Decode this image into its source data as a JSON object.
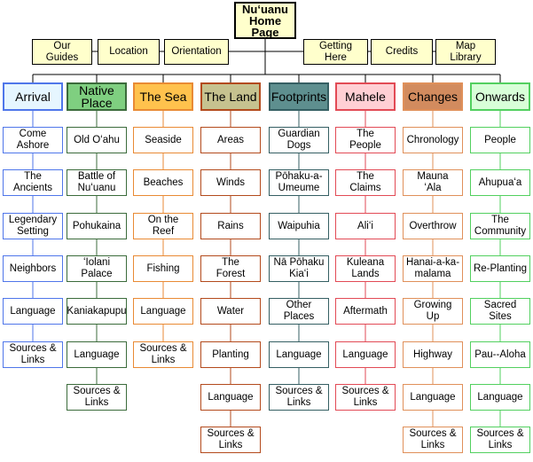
{
  "home": {
    "label": "Nuʻuanu\nHome\nPage"
  },
  "top_nav": [
    {
      "label": "Our\nGuides"
    },
    {
      "label": "Location"
    },
    {
      "label": "Orientation"
    },
    {
      "label": "Getting\nHere"
    },
    {
      "label": "Credits"
    },
    {
      "label": "Map\nLibrary"
    }
  ],
  "sections": [
    {
      "title": "Arrival",
      "header_bg": "#e6f6ff",
      "color": "#4f76ea",
      "items": [
        "Come\nAshore",
        "The\nAncients",
        "Legendary\nSetting",
        "Neighbors",
        "Language",
        "Sources &\nLinks"
      ]
    },
    {
      "title": "Native\nPlace",
      "header_bg": "#7fcf80",
      "color": "#3b6b3b",
      "items": [
        "Old Oʻahu",
        "Battle of\nNuʻuanu",
        "Pohukaina",
        "ʻIolani\nPalace",
        "Kaniakapupu",
        "Language",
        "Sources &\nLinks"
      ]
    },
    {
      "title": "The Sea",
      "header_bg": "#ffc24d",
      "color": "#e98a34",
      "items": [
        "Seaside",
        "Beaches",
        "On the\nReef",
        "Fishing",
        "Language",
        "Sources &\nLinks"
      ]
    },
    {
      "title": "The Land",
      "header_bg": "#c6c28f",
      "color": "#b34a1c",
      "items": [
        "Areas",
        "Winds",
        "Rains",
        "The\nForest",
        "Water",
        "Planting",
        "Language",
        "Sources &\nLinks"
      ]
    },
    {
      "title": "Footprints",
      "header_bg": "#5e8f8f",
      "color": "#355f63",
      "items": [
        "Guardian\nDogs",
        "Pōhaku-a-\nUmeume",
        "Waipuhia",
        "Nā Pōhaku\nKiaʻi",
        "Other\nPlaces",
        "Language",
        "Sources &\nLinks"
      ]
    },
    {
      "title": "Mahele",
      "header_bg": "#ffcfd4",
      "color": "#e24a55",
      "items": [
        "The\nPeople",
        "The\nClaims",
        "Aliʻi",
        "Kuleana\nLands",
        "Aftermath",
        "Language",
        "Sources &\nLinks"
      ]
    },
    {
      "title": "Changes",
      "header_bg": "#d28b5e",
      "color": "#e0905a",
      "items": [
        "Chronology",
        "Mauna\nʻAla",
        "Overthrow",
        "Hanai-a-ka-\nmalama",
        "Growing\nUp",
        "Highway",
        "Language",
        "Sources &\nLinks"
      ]
    },
    {
      "title": "Onwards",
      "header_bg": "#d8ffd8",
      "color": "#52d05f",
      "items": [
        "People",
        "Ahupuaʻa",
        "The\nCommunity",
        "Re-Planting",
        "Sacred\nSites",
        "Pau--Aloha",
        "Language",
        "Sources &\nLinks"
      ]
    }
  ]
}
